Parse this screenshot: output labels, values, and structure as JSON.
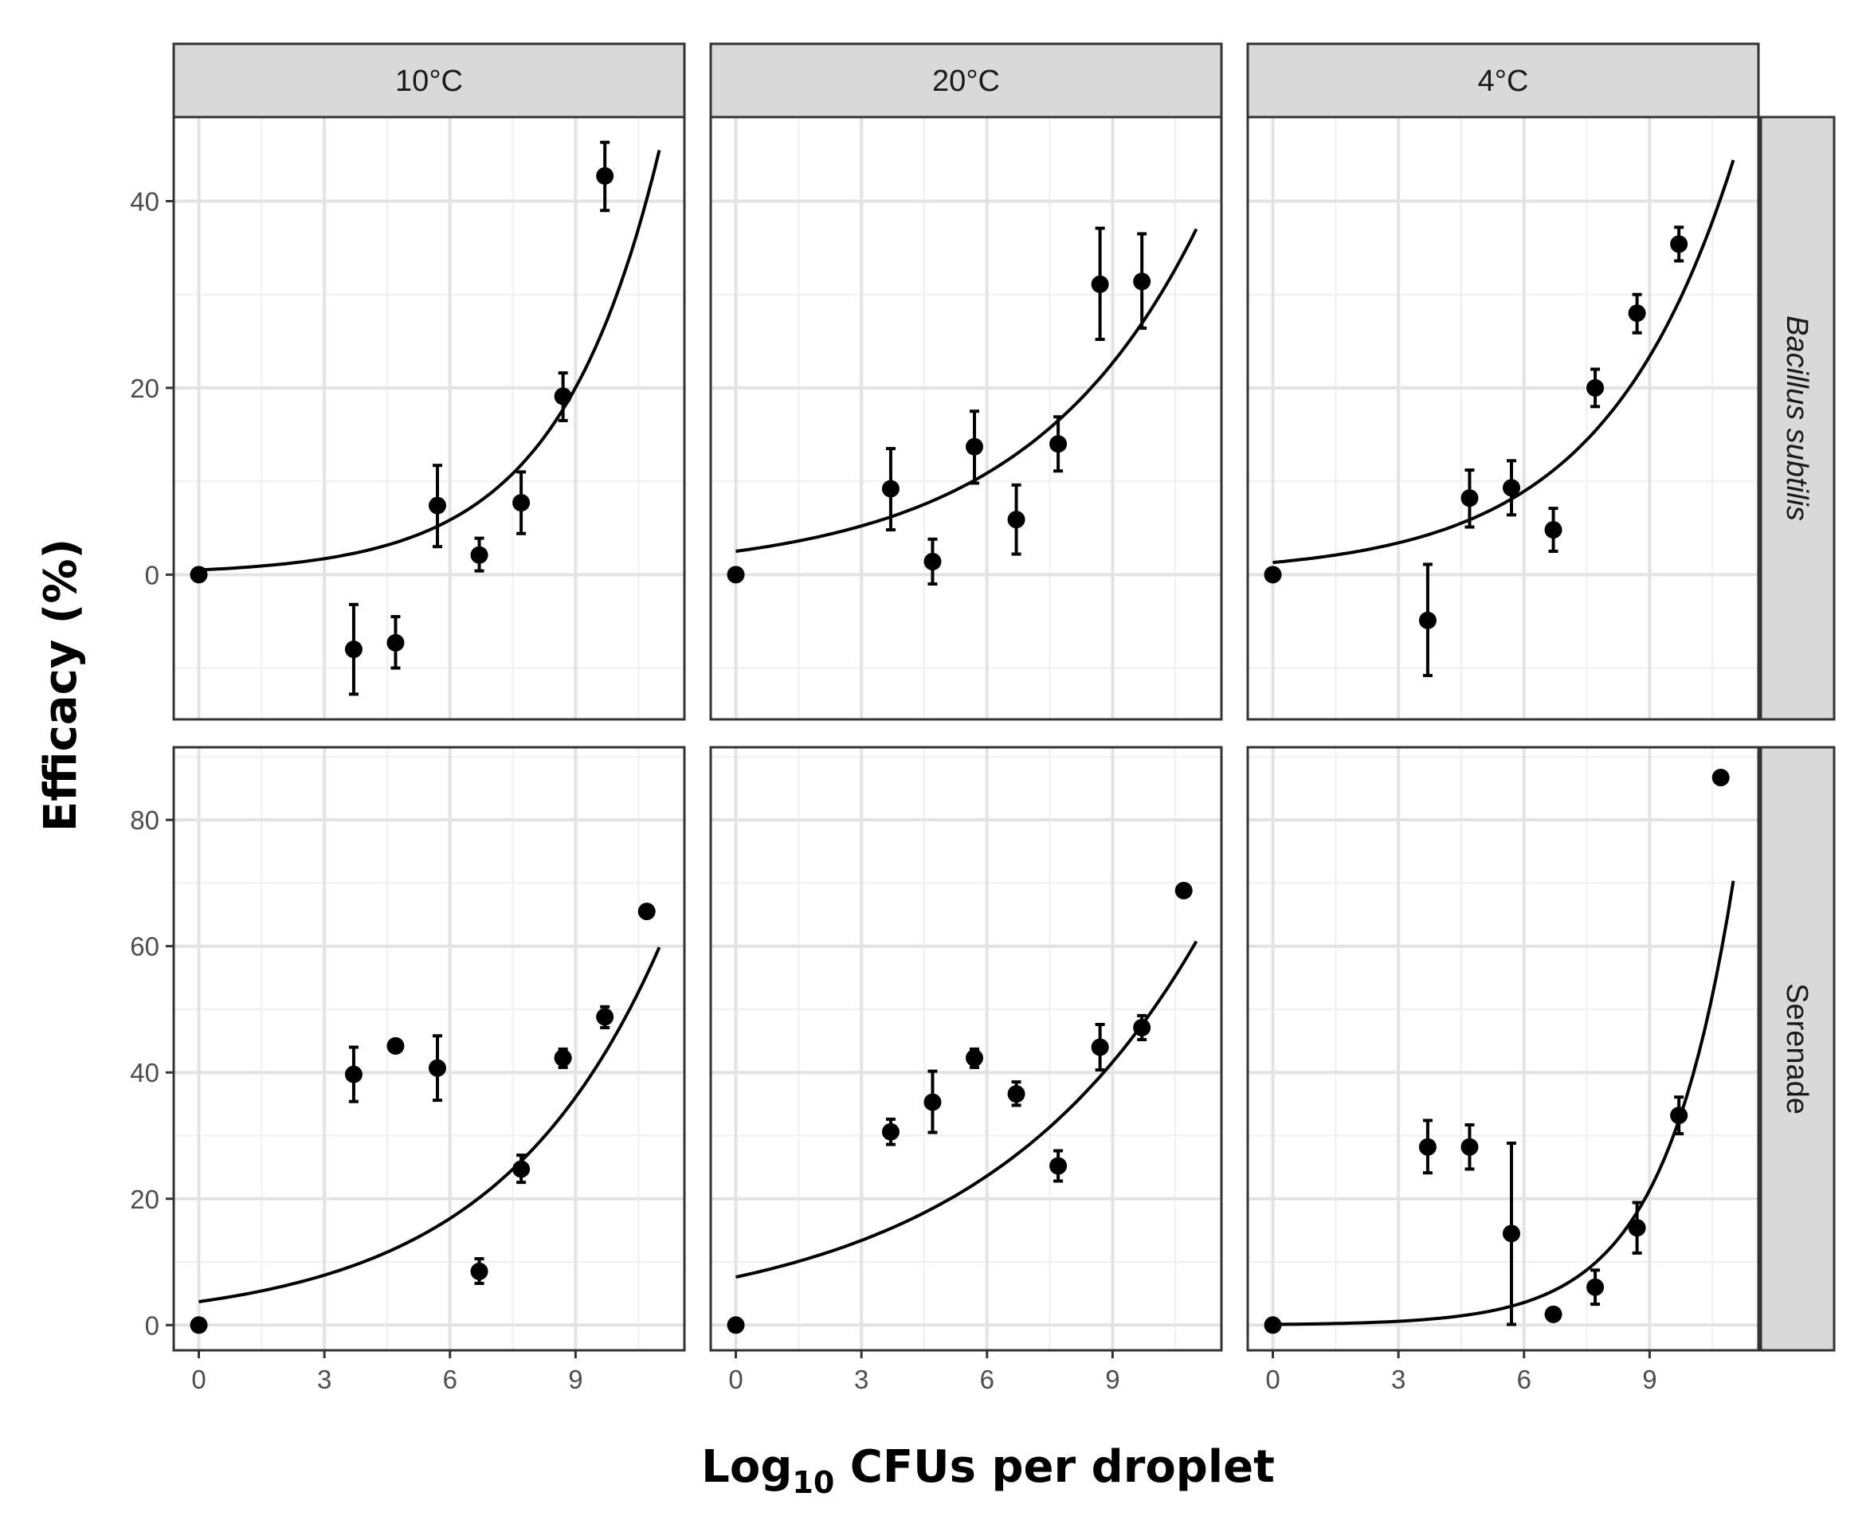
{
  "chart_data": {
    "type": "scatter",
    "layout": "facet-grid",
    "xlabel_main": "Log",
    "xlabel_sub": "10",
    "xlabel_rest": " CFUs per droplet",
    "ylabel": "Efficacy (%)",
    "columns": [
      "10°C",
      "20°C",
      "4°C"
    ],
    "x_ticks": [
      0,
      3,
      6,
      9
    ],
    "x_tick_labels": [
      "0",
      "3",
      "6",
      "9"
    ],
    "xlim": [
      -0.6,
      11.6
    ],
    "rows": [
      {
        "label": "Bacillus subtilis",
        "italic": true,
        "ylim": [
          -15.5,
          49
        ],
        "y_ticks": [
          0,
          20,
          40
        ],
        "y_tick_labels": [
          "0",
          "20",
          "40"
        ],
        "y_minor": [
          -10,
          10,
          30
        ],
        "panels": [
          {
            "column": "10°C",
            "fit": {
              "a": 0.5,
              "b": 0.41,
              "x_range": [
                0,
                11
              ]
            },
            "points": [
              {
                "x": 0,
                "y": 0,
                "lo": null,
                "hi": null
              },
              {
                "x": 3.7,
                "y": -8,
                "lo": -12.8,
                "hi": -3.2
              },
              {
                "x": 4.7,
                "y": -7.3,
                "lo": -10,
                "hi": -4.5
              },
              {
                "x": 5.7,
                "y": 7.4,
                "lo": 3,
                "hi": 11.7
              },
              {
                "x": 6.7,
                "y": 2.1,
                "lo": 0.4,
                "hi": 3.9
              },
              {
                "x": 7.7,
                "y": 7.7,
                "lo": 4.4,
                "hi": 11
              },
              {
                "x": 8.7,
                "y": 19.1,
                "lo": 16.5,
                "hi": 21.6
              },
              {
                "x": 9.7,
                "y": 42.7,
                "lo": 39,
                "hi": 46.3
              }
            ]
          },
          {
            "column": "20°C",
            "fit": {
              "a": 2.5,
              "b": 0.245,
              "x_range": [
                0,
                11
              ]
            },
            "points": [
              {
                "x": 0,
                "y": 0,
                "lo": null,
                "hi": null
              },
              {
                "x": 3.7,
                "y": 9.2,
                "lo": 4.8,
                "hi": 13.5
              },
              {
                "x": 4.7,
                "y": 1.4,
                "lo": -1,
                "hi": 3.8
              },
              {
                "x": 5.7,
                "y": 13.7,
                "lo": 9.8,
                "hi": 17.5
              },
              {
                "x": 6.7,
                "y": 5.9,
                "lo": 2.2,
                "hi": 9.6
              },
              {
                "x": 7.7,
                "y": 14,
                "lo": 11.1,
                "hi": 16.9
              },
              {
                "x": 8.7,
                "y": 31.1,
                "lo": 25.2,
                "hi": 37.1
              },
              {
                "x": 9.7,
                "y": 31.4,
                "lo": 26.4,
                "hi": 36.5
              }
            ]
          },
          {
            "column": "4°C",
            "fit": {
              "a": 1.3,
              "b": 0.321,
              "x_range": [
                0,
                11
              ]
            },
            "points": [
              {
                "x": 0,
                "y": 0,
                "lo": null,
                "hi": null
              },
              {
                "x": 3.7,
                "y": -4.9,
                "lo": -10.8,
                "hi": 1.1
              },
              {
                "x": 4.7,
                "y": 8.2,
                "lo": 5.1,
                "hi": 11.2
              },
              {
                "x": 5.7,
                "y": 9.3,
                "lo": 6.4,
                "hi": 12.2
              },
              {
                "x": 6.7,
                "y": 4.8,
                "lo": 2.5,
                "hi": 7.1
              },
              {
                "x": 7.7,
                "y": 20,
                "lo": 18,
                "hi": 22
              },
              {
                "x": 8.7,
                "y": 28,
                "lo": 25.9,
                "hi": 30
              },
              {
                "x": 9.7,
                "y": 35.4,
                "lo": 33.6,
                "hi": 37.2
              }
            ]
          }
        ]
      },
      {
        "label": "Serenade",
        "italic": false,
        "ylim": [
          -4,
          91.5
        ],
        "y_ticks": [
          0,
          20,
          40,
          60,
          80
        ],
        "y_tick_labels": [
          "0",
          "20",
          "40",
          "60",
          "80"
        ],
        "y_minor": [
          10,
          30,
          50,
          70,
          90
        ],
        "panels": [
          {
            "column": "10°C",
            "fit": {
              "a": 3.7,
              "b": 0.253,
              "x_range": [
                0,
                11
              ]
            },
            "points": [
              {
                "x": 0,
                "y": 0,
                "lo": null,
                "hi": null
              },
              {
                "x": 3.7,
                "y": 39.7,
                "lo": 35.4,
                "hi": 44
              },
              {
                "x": 4.7,
                "y": 44.2,
                "lo": null,
                "hi": null
              },
              {
                "x": 5.7,
                "y": 40.7,
                "lo": 35.6,
                "hi": 45.8
              },
              {
                "x": 6.7,
                "y": 8.5,
                "lo": 6.6,
                "hi": 10.5
              },
              {
                "x": 7.7,
                "y": 24.7,
                "lo": 22.6,
                "hi": 26.9
              },
              {
                "x": 8.7,
                "y": 42.3,
                "lo": 40.8,
                "hi": 43.7
              },
              {
                "x": 9.7,
                "y": 48.8,
                "lo": 47.1,
                "hi": 50.4
              },
              {
                "x": 10.7,
                "y": 65.5,
                "lo": null,
                "hi": null
              }
            ]
          },
          {
            "column": "20°C",
            "fit": {
              "a": 7.6,
              "b": 0.189,
              "x_range": [
                0,
                11
              ]
            },
            "points": [
              {
                "x": 0,
                "y": 0,
                "lo": null,
                "hi": null
              },
              {
                "x": 3.7,
                "y": 30.6,
                "lo": 28.6,
                "hi": 32.6
              },
              {
                "x": 4.7,
                "y": 35.3,
                "lo": 30.5,
                "hi": 40.2
              },
              {
                "x": 5.7,
                "y": 42.3,
                "lo": 40.8,
                "hi": 43.7
              },
              {
                "x": 6.7,
                "y": 36.6,
                "lo": 34.8,
                "hi": 38.5
              },
              {
                "x": 7.7,
                "y": 25.2,
                "lo": 22.8,
                "hi": 27.6
              },
              {
                "x": 8.7,
                "y": 44,
                "lo": 40.4,
                "hi": 47.6
              },
              {
                "x": 9.7,
                "y": 47.1,
                "lo": 45.2,
                "hi": 49
              },
              {
                "x": 10.7,
                "y": 68.8,
                "lo": null,
                "hi": null
              }
            ]
          },
          {
            "column": "4°C",
            "fit": {
              "a": 0.1,
              "b": 0.596,
              "x_range": [
                0,
                11
              ]
            },
            "points": [
              {
                "x": 0,
                "y": 0,
                "lo": null,
                "hi": null
              },
              {
                "x": 3.7,
                "y": 28.2,
                "lo": 24.1,
                "hi": 32.4
              },
              {
                "x": 4.7,
                "y": 28.2,
                "lo": 24.7,
                "hi": 31.7
              },
              {
                "x": 5.7,
                "y": 14.5,
                "lo": 0.1,
                "hi": 28.8
              },
              {
                "x": 6.7,
                "y": 1.7,
                "lo": null,
                "hi": null
              },
              {
                "x": 7.7,
                "y": 6,
                "lo": 3.3,
                "hi": 8.7
              },
              {
                "x": 8.7,
                "y": 15.4,
                "lo": 11.4,
                "hi": 19.4
              },
              {
                "x": 9.7,
                "y": 33.2,
                "lo": 30.3,
                "hi": 36.1
              },
              {
                "x": 10.7,
                "y": 86.7,
                "lo": null,
                "hi": null
              }
            ]
          }
        ]
      }
    ]
  }
}
